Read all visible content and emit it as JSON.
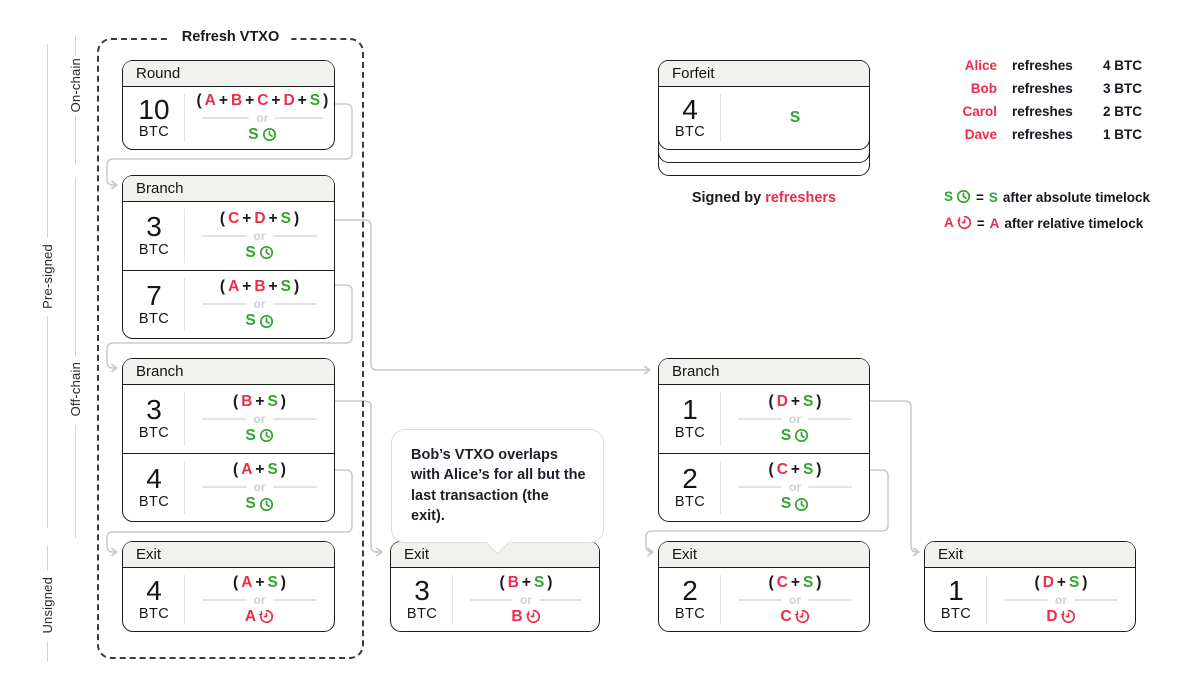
{
  "labels": {
    "or": "or",
    "refresh_group": "Refresh VTXO"
  },
  "colors": {
    "red": "#ee2b4c",
    "green": "#31a32f",
    "ink": "#1a1a1a",
    "muted": "#cfcfcf",
    "connector": "#c9c9c9"
  },
  "side_labels": {
    "on_chain": "On-chain",
    "pre_signed": "Pre-signed",
    "off_chain": "Off-chain",
    "unsigned": "Unsigned"
  },
  "boxes": {
    "round": {
      "title": "Round",
      "rows": [
        {
          "amount": "10",
          "unit": "BTC",
          "script": [
            [
              "(",
              "ink"
            ],
            [
              "A",
              "red"
            ],
            [
              "+",
              "ink"
            ],
            [
              "B",
              "red"
            ],
            [
              "+",
              "ink"
            ],
            [
              "C",
              "red"
            ],
            [
              "+",
              "ink"
            ],
            [
              "D",
              "red"
            ],
            [
              "+",
              "ink"
            ],
            [
              "S",
              "green"
            ],
            [
              ")",
              "ink"
            ]
          ],
          "fallback": {
            "key": "S",
            "color": "green",
            "timelock": "absolute"
          }
        }
      ]
    },
    "branch_top": {
      "title": "Branch",
      "rows": [
        {
          "amount": "3",
          "unit": "BTC",
          "script": [
            [
              "(",
              "ink"
            ],
            [
              "C",
              "red"
            ],
            [
              "+",
              "ink"
            ],
            [
              "D",
              "red"
            ],
            [
              "+",
              "ink"
            ],
            [
              "S",
              "green"
            ],
            [
              ")",
              "ink"
            ]
          ],
          "fallback": {
            "key": "S",
            "color": "green",
            "timelock": "absolute"
          }
        },
        {
          "amount": "7",
          "unit": "BTC",
          "script": [
            [
              "(",
              "ink"
            ],
            [
              "A",
              "red"
            ],
            [
              "+",
              "ink"
            ],
            [
              "B",
              "red"
            ],
            [
              "+",
              "ink"
            ],
            [
              "S",
              "green"
            ],
            [
              ")",
              "ink"
            ]
          ],
          "fallback": {
            "key": "S",
            "color": "green",
            "timelock": "absolute"
          }
        }
      ]
    },
    "branch_left": {
      "title": "Branch",
      "rows": [
        {
          "amount": "3",
          "unit": "BTC",
          "script": [
            [
              "(",
              "ink"
            ],
            [
              "B",
              "red"
            ],
            [
              "+",
              "ink"
            ],
            [
              "S",
              "green"
            ],
            [
              ")",
              "ink"
            ]
          ],
          "fallback": {
            "key": "S",
            "color": "green",
            "timelock": "absolute"
          }
        },
        {
          "amount": "4",
          "unit": "BTC",
          "script": [
            [
              "(",
              "ink"
            ],
            [
              "A",
              "red"
            ],
            [
              "+",
              "ink"
            ],
            [
              "S",
              "green"
            ],
            [
              ")",
              "ink"
            ]
          ],
          "fallback": {
            "key": "S",
            "color": "green",
            "timelock": "absolute"
          }
        }
      ]
    },
    "exit_a": {
      "title": "Exit",
      "rows": [
        {
          "amount": "4",
          "unit": "BTC",
          "script": [
            [
              "(",
              "ink"
            ],
            [
              "A",
              "red"
            ],
            [
              "+",
              "ink"
            ],
            [
              "S",
              "green"
            ],
            [
              ")",
              "ink"
            ]
          ],
          "fallback": {
            "key": "A",
            "color": "red",
            "timelock": "relative"
          }
        }
      ]
    },
    "exit_b": {
      "title": "Exit",
      "rows": [
        {
          "amount": "3",
          "unit": "BTC",
          "script": [
            [
              "(",
              "ink"
            ],
            [
              "B",
              "red"
            ],
            [
              "+",
              "ink"
            ],
            [
              "S",
              "green"
            ],
            [
              ")",
              "ink"
            ]
          ],
          "fallback": {
            "key": "B",
            "color": "red",
            "timelock": "relative"
          }
        }
      ]
    },
    "branch_right": {
      "title": "Branch",
      "rows": [
        {
          "amount": "1",
          "unit": "BTC",
          "script": [
            [
              "(",
              "ink"
            ],
            [
              "D",
              "red"
            ],
            [
              "+",
              "ink"
            ],
            [
              "S",
              "green"
            ],
            [
              ")",
              "ink"
            ]
          ],
          "fallback": {
            "key": "S",
            "color": "green",
            "timelock": "absolute"
          }
        },
        {
          "amount": "2",
          "unit": "BTC",
          "script": [
            [
              "(",
              "ink"
            ],
            [
              "C",
              "red"
            ],
            [
              "+",
              "ink"
            ],
            [
              "S",
              "green"
            ],
            [
              ")",
              "ink"
            ]
          ],
          "fallback": {
            "key": "S",
            "color": "green",
            "timelock": "absolute"
          }
        }
      ]
    },
    "exit_c": {
      "title": "Exit",
      "rows": [
        {
          "amount": "2",
          "unit": "BTC",
          "script": [
            [
              "(",
              "ink"
            ],
            [
              "C",
              "red"
            ],
            [
              "+",
              "ink"
            ],
            [
              "S",
              "green"
            ],
            [
              ")",
              "ink"
            ]
          ],
          "fallback": {
            "key": "C",
            "color": "red",
            "timelock": "relative"
          }
        }
      ]
    },
    "exit_d": {
      "title": "Exit",
      "rows": [
        {
          "amount": "1",
          "unit": "BTC",
          "script": [
            [
              "(",
              "ink"
            ],
            [
              "D",
              "red"
            ],
            [
              "+",
              "ink"
            ],
            [
              "S",
              "green"
            ],
            [
              ")",
              "ink"
            ]
          ],
          "fallback": {
            "key": "D",
            "color": "red",
            "timelock": "relative"
          }
        }
      ]
    },
    "forfeit": {
      "title": "Forfeit",
      "amount": "4",
      "unit": "BTC",
      "single_key": "S",
      "caption_plain": "Signed by ",
      "caption_red": "refreshers"
    }
  },
  "callout": {
    "text": "Bob’s VTXO overlaps with Alice’s for all but the last transaction (the exit)."
  },
  "legend": {
    "rows": [
      {
        "name": "Alice",
        "verb": "refreshes",
        "amount": "4 BTC"
      },
      {
        "name": "Bob",
        "verb": "refreshes",
        "amount": "3 BTC"
      },
      {
        "name": "Carol",
        "verb": "refreshes",
        "amount": "2 BTC"
      },
      {
        "name": "Dave",
        "verb": "refreshes",
        "amount": "1 BTC"
      }
    ]
  },
  "timelock_legend": [
    {
      "key": "S",
      "color": "green",
      "timelock": "absolute",
      "equals": "=",
      "desc": "after absolute timelock"
    },
    {
      "key": "A",
      "color": "red",
      "timelock": "relative",
      "equals": "=",
      "desc": "after relative timelock"
    }
  ]
}
